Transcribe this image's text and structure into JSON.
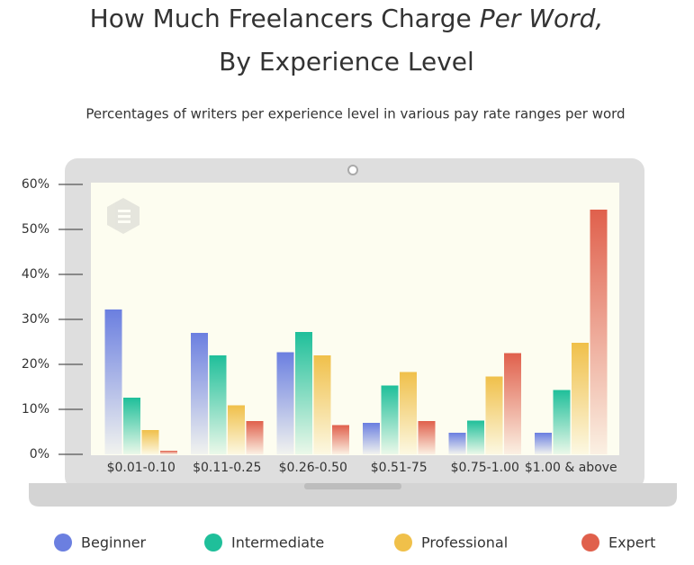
{
  "chart_data": {
    "type": "bar",
    "title": {
      "line1": "How Much Freelancers Charge",
      "line1_italic": "Per Word,",
      "line2": "By Experience Level"
    },
    "subtitle": "Percentages of writers per experience level in various pay rate ranges per word",
    "categories": [
      "$0.01-0.10",
      "$0.11-0.25",
      "$0.26-0.50",
      "$0.51-75",
      "$0.75-1.00",
      "$1.00 & above"
    ],
    "series": [
      {
        "name": "Beginner",
        "color": "#6b7fe0",
        "values": [
          32.2,
          27,
          22.7,
          7,
          4.8,
          4.8
        ]
      },
      {
        "name": "Intermediate",
        "color": "#1fbf9a",
        "values": [
          12.6,
          22,
          27.2,
          15.3,
          7.5,
          14.3
        ]
      },
      {
        "name": "Professional",
        "color": "#f0c04a",
        "values": [
          5.4,
          10.9,
          22,
          18.3,
          17.3,
          24.8
        ]
      },
      {
        "name": "Expert",
        "color": "#e0604c",
        "values": [
          0.8,
          7.4,
          6.5,
          7.4,
          22.5,
          54.4
        ]
      }
    ],
    "ylim": [
      0,
      60
    ],
    "yticks": [
      {
        "value": 0,
        "label": "0%"
      },
      {
        "value": 10,
        "label": "10%"
      },
      {
        "value": 20,
        "label": "20%"
      },
      {
        "value": 30,
        "label": "30%"
      },
      {
        "value": 40,
        "label": "40%"
      },
      {
        "value": 50,
        "label": "50%"
      },
      {
        "value": 60,
        "label": "60%"
      }
    ],
    "grid": false,
    "legend": "bottom"
  }
}
